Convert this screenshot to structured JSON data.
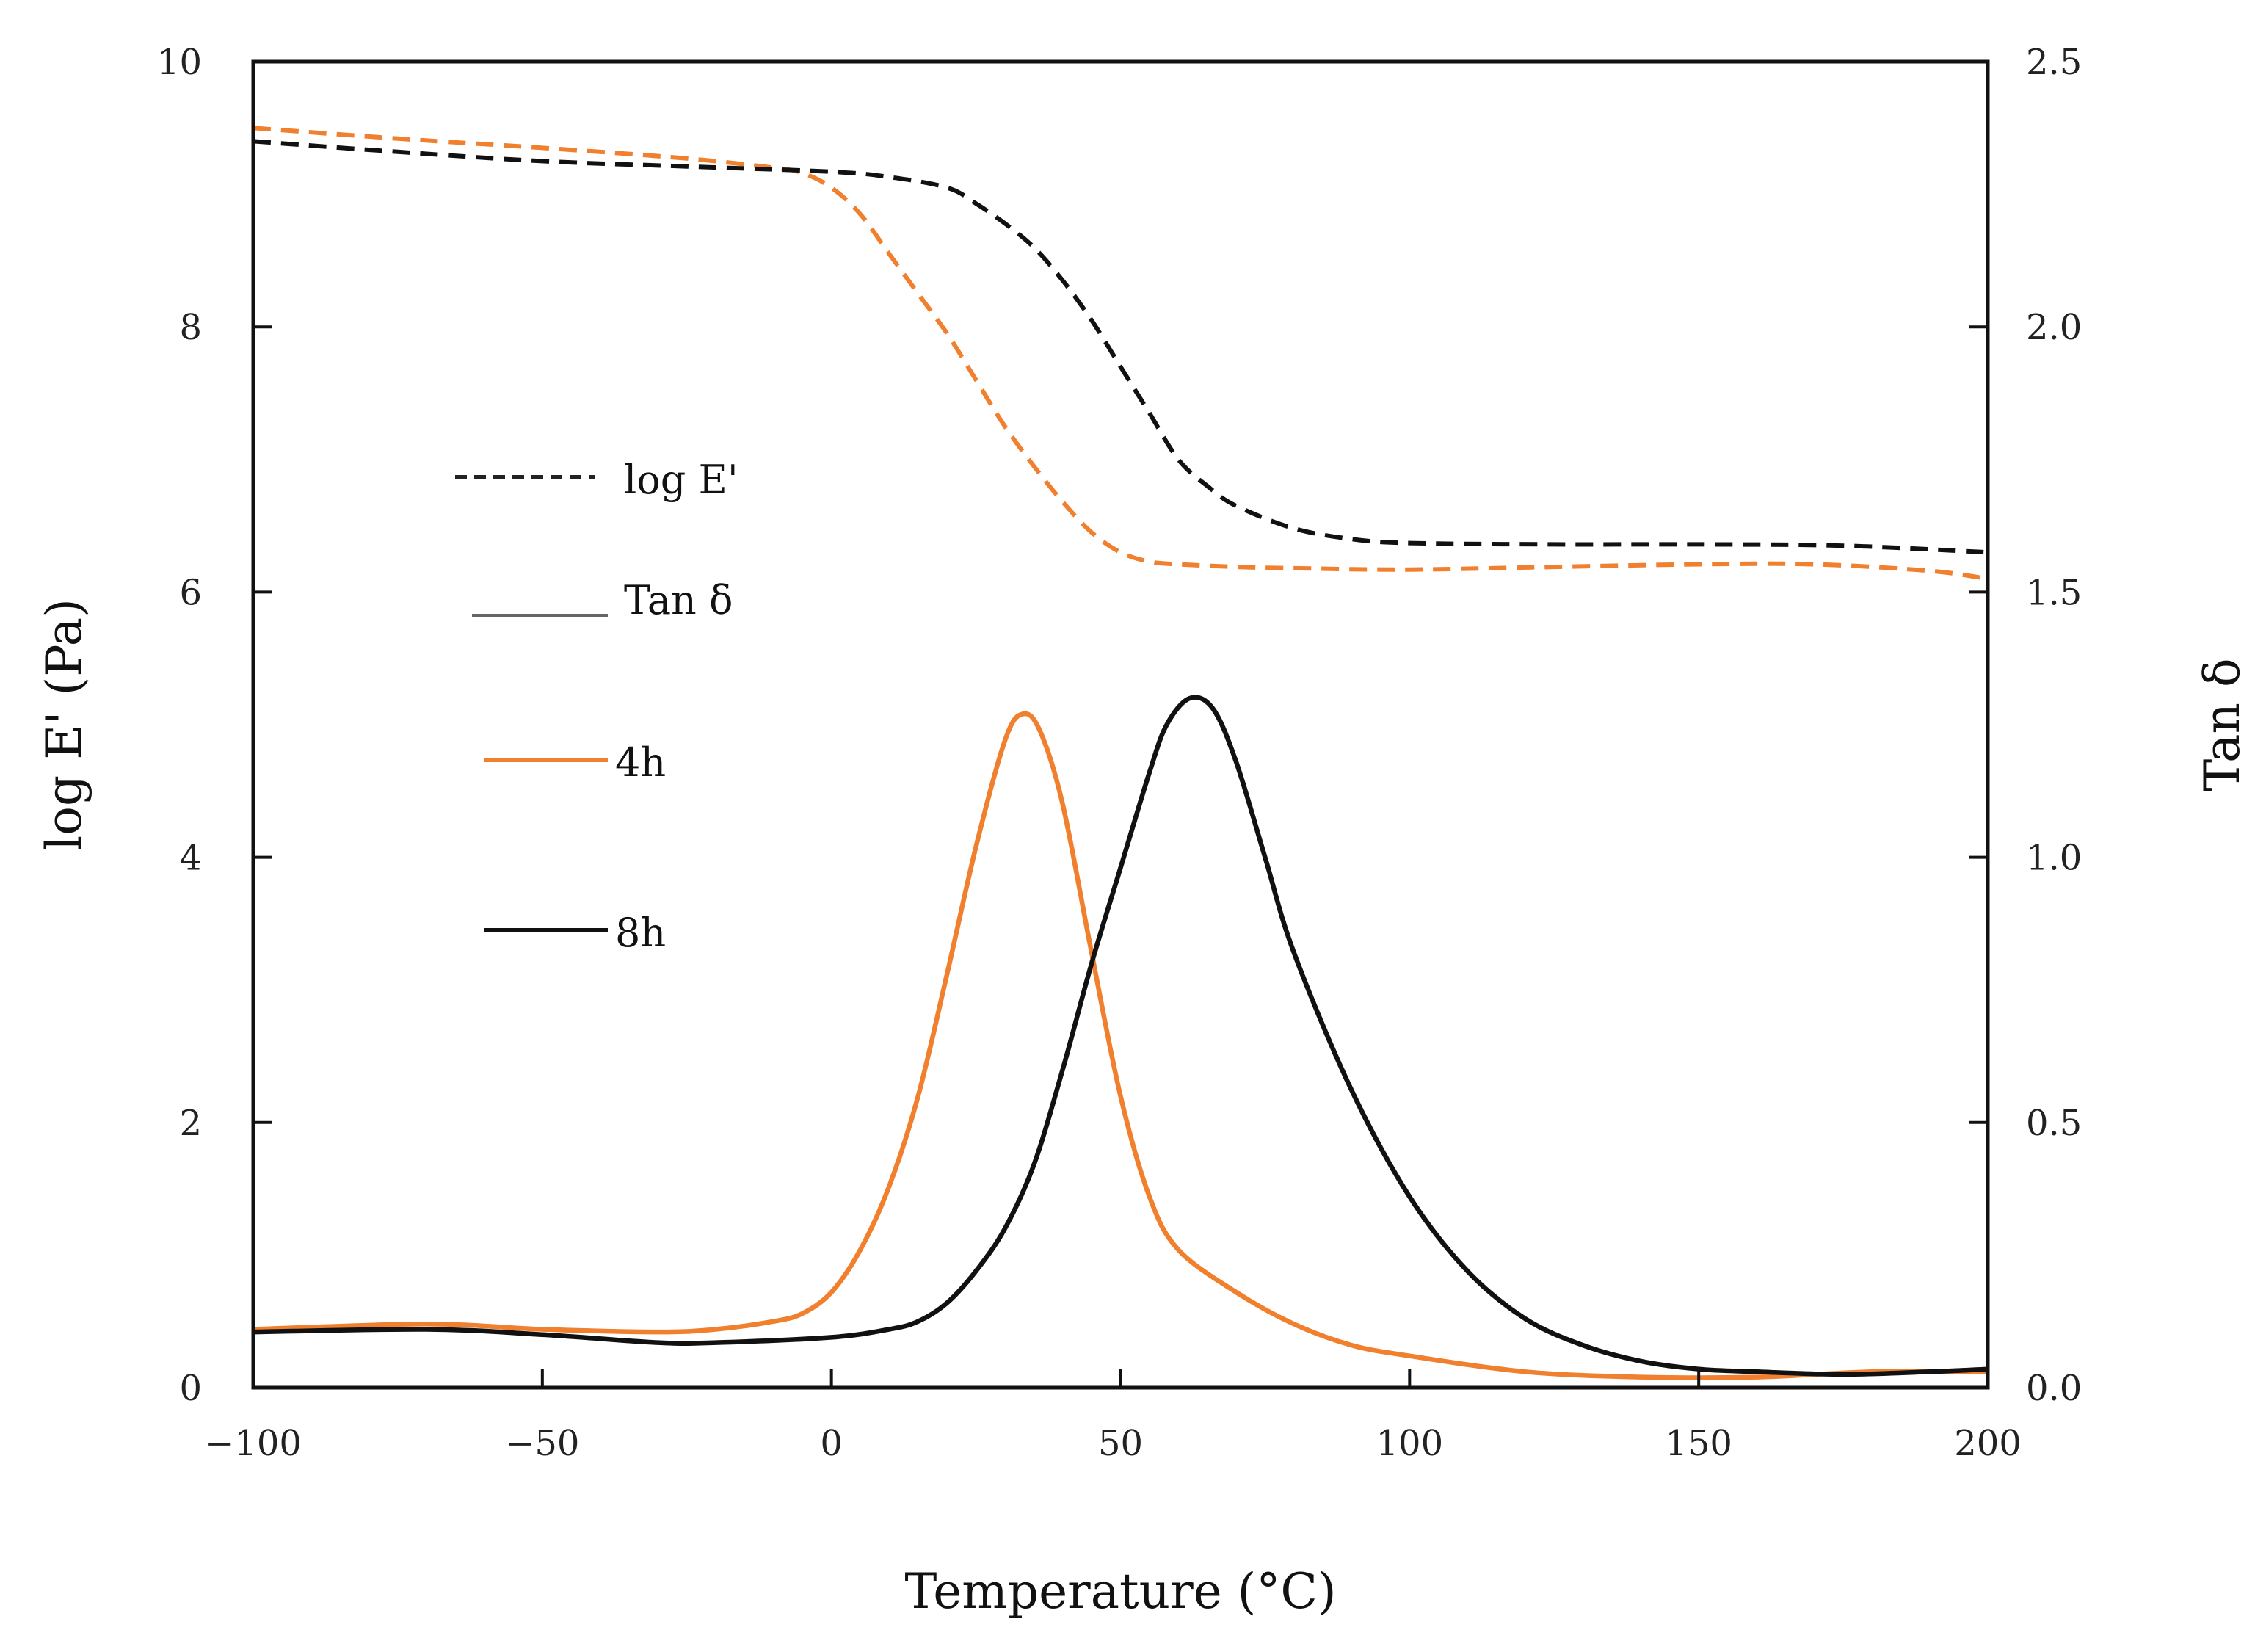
{
  "chart_data": {
    "type": "line",
    "title": "",
    "xlabel": "Temperature (°C)",
    "ylabel": "log E' (Pa)",
    "y2label": "Tan δ",
    "xlim": [
      -100,
      200
    ],
    "ylim": [
      0,
      10
    ],
    "y2lim": [
      0,
      2.5
    ],
    "xticks": [
      -100,
      -50,
      0,
      50,
      100,
      150,
      200
    ],
    "xtick_labels": [
      "−100",
      "−50",
      "0",
      "50",
      "100",
      "150",
      "200"
    ],
    "yticks": [
      0,
      2,
      4,
      6,
      8,
      10
    ],
    "ytick_labels": [
      "0",
      "2",
      "4",
      "6",
      "8",
      "10"
    ],
    "y2ticks": [
      0,
      0.5,
      1.0,
      1.5,
      2.0,
      2.5
    ],
    "y2tick_labels": [
      "0.0",
      "0.5",
      "1.0",
      "1.5",
      "2.0",
      "2.5"
    ],
    "grid": false,
    "legend": {
      "position": "left-middle",
      "entries": [
        {
          "label": "log E'",
          "style": "dashed",
          "color": "#222222"
        },
        {
          "label": "Tan δ",
          "style": "solid-thin",
          "color": "#666666"
        },
        {
          "label": "4h",
          "style": "solid",
          "color": "#f07f2e"
        },
        {
          "label": "8h",
          "style": "solid",
          "color": "#111111"
        }
      ]
    },
    "series": [
      {
        "name": "4h log E'",
        "axis": "left",
        "style": "dashed",
        "color": "#f07f2e",
        "x": [
          -100,
          -75,
          -50,
          -25,
          -10,
          -5,
          0,
          5,
          10,
          15,
          20,
          25,
          30,
          35,
          40,
          45,
          50,
          55,
          60,
          70,
          80,
          100,
          125,
          150,
          170,
          190,
          200
        ],
        "y": [
          9.5,
          9.42,
          9.35,
          9.27,
          9.2,
          9.16,
          9.05,
          8.85,
          8.55,
          8.25,
          7.95,
          7.6,
          7.25,
          6.95,
          6.68,
          6.45,
          6.3,
          6.23,
          6.21,
          6.19,
          6.18,
          6.17,
          6.19,
          6.21,
          6.21,
          6.16,
          6.1
        ]
      },
      {
        "name": "8h log E'",
        "axis": "left",
        "style": "dashed",
        "color": "#111111",
        "x": [
          -100,
          -75,
          -50,
          -25,
          0,
          10,
          20,
          25,
          30,
          35,
          40,
          45,
          50,
          55,
          60,
          65,
          70,
          80,
          90,
          100,
          125,
          150,
          175,
          200
        ],
        "y": [
          9.4,
          9.32,
          9.25,
          9.21,
          9.17,
          9.13,
          9.05,
          8.93,
          8.78,
          8.6,
          8.35,
          8.05,
          7.7,
          7.35,
          7.0,
          6.8,
          6.65,
          6.48,
          6.4,
          6.37,
          6.36,
          6.36,
          6.35,
          6.3
        ]
      },
      {
        "name": "4h Tan δ",
        "axis": "right",
        "style": "solid",
        "color": "#f07f2e",
        "x": [
          -100,
          -70,
          -50,
          -30,
          -20,
          -10,
          -5,
          0,
          5,
          10,
          15,
          20,
          25,
          30,
          33,
          36,
          40,
          45,
          50,
          55,
          60,
          70,
          80,
          90,
          100,
          120,
          140,
          160,
          180,
          200
        ],
        "y": [
          0.11,
          0.12,
          0.11,
          0.105,
          0.11,
          0.125,
          0.14,
          0.18,
          0.26,
          0.38,
          0.55,
          0.78,
          1.02,
          1.22,
          1.27,
          1.24,
          1.1,
          0.82,
          0.55,
          0.36,
          0.26,
          0.18,
          0.12,
          0.08,
          0.06,
          0.03,
          0.02,
          0.02,
          0.03,
          0.03
        ]
      },
      {
        "name": "8h Tan δ",
        "axis": "right",
        "style": "solid",
        "color": "#111111",
        "x": [
          -100,
          -70,
          -50,
          -30,
          -20,
          0,
          10,
          15,
          20,
          25,
          30,
          35,
          40,
          45,
          50,
          55,
          58,
          62,
          66,
          70,
          75,
          80,
          90,
          100,
          110,
          120,
          130,
          140,
          150,
          160,
          175,
          190,
          200
        ],
        "y": [
          0.105,
          0.11,
          0.1,
          0.085,
          0.085,
          0.095,
          0.11,
          0.125,
          0.16,
          0.22,
          0.3,
          0.42,
          0.6,
          0.8,
          0.98,
          1.16,
          1.25,
          1.3,
          1.28,
          1.18,
          1.0,
          0.82,
          0.56,
          0.36,
          0.22,
          0.13,
          0.08,
          0.05,
          0.035,
          0.03,
          0.025,
          0.03,
          0.035
        ]
      }
    ]
  }
}
